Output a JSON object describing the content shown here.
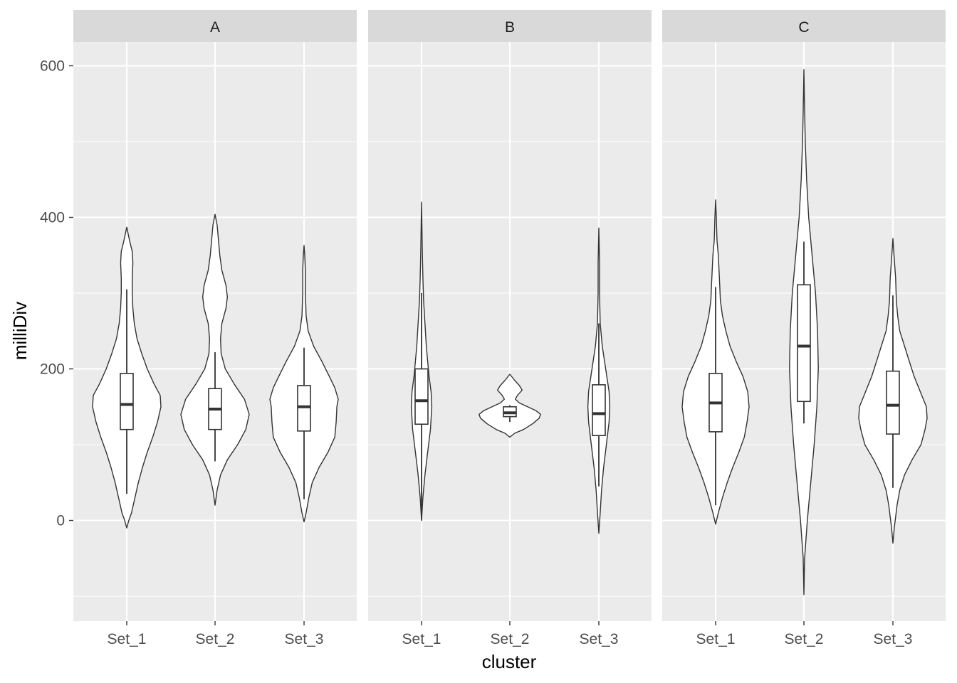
{
  "chart_data": {
    "type": "violin",
    "xlabel": "cluster",
    "ylabel": "milliDiv",
    "ylim": [
      -130,
      670
    ],
    "y_ticks": [
      0,
      200,
      400,
      600
    ],
    "y_tick_labels": [
      "0",
      "200",
      "400",
      "600"
    ],
    "x_tick_labels": [
      "Set_1",
      "Set_2",
      "Set_3"
    ],
    "grid": true,
    "overlay": "boxplot",
    "panels": [
      {
        "facet": "A",
        "groups": [
          {
            "category": "Set_1",
            "box": {
              "whisker_low": 35,
              "q1": 120,
              "median": 153,
              "q3": 194,
              "whisker_high": 305
            },
            "violin": {
              "ymin": -10,
              "ymax": 387,
              "density": [
                [
                  -10,
                  0.0
                ],
                [
                  0,
                  0.03
                ],
                [
                  10,
                  0.07
                ],
                [
                  30,
                  0.12
                ],
                [
                  50,
                  0.17
                ],
                [
                  70,
                  0.23
                ],
                [
                  90,
                  0.3
                ],
                [
                  110,
                  0.38
                ],
                [
                  130,
                  0.45
                ],
                [
                  150,
                  0.5
                ],
                [
                  165,
                  0.49
                ],
                [
                  180,
                  0.4
                ],
                [
                  200,
                  0.3
                ],
                [
                  220,
                  0.22
                ],
                [
                  240,
                  0.15
                ],
                [
                  260,
                  0.11
                ],
                [
                  280,
                  0.09
                ],
                [
                  300,
                  0.08
                ],
                [
                  320,
                  0.08
                ],
                [
                  340,
                  0.09
                ],
                [
                  355,
                  0.08
                ],
                [
                  370,
                  0.04
                ],
                [
                  387,
                  0.0
                ]
              ]
            }
          },
          {
            "category": "Set_2",
            "box": {
              "whisker_low": 78,
              "q1": 120,
              "median": 147,
              "q3": 174,
              "whisker_high": 222
            },
            "violin": {
              "ymin": 20,
              "ymax": 404,
              "density": [
                [
                  20,
                  0.0
                ],
                [
                  40,
                  0.03
                ],
                [
                  60,
                  0.08
                ],
                [
                  80,
                  0.18
                ],
                [
                  100,
                  0.33
                ],
                [
                  120,
                  0.45
                ],
                [
                  140,
                  0.5
                ],
                [
                  160,
                  0.43
                ],
                [
                  180,
                  0.28
                ],
                [
                  200,
                  0.15
                ],
                [
                  220,
                  0.09
                ],
                [
                  240,
                  0.08
                ],
                [
                  260,
                  0.1
                ],
                [
                  280,
                  0.16
                ],
                [
                  295,
                  0.18
                ],
                [
                  310,
                  0.16
                ],
                [
                  330,
                  0.1
                ],
                [
                  350,
                  0.07
                ],
                [
                  370,
                  0.05
                ],
                [
                  390,
                  0.03
                ],
                [
                  404,
                  0.0
                ]
              ]
            }
          },
          {
            "category": "Set_3",
            "box": {
              "whisker_low": 28,
              "q1": 118,
              "median": 150,
              "q3": 178,
              "whisker_high": 228
            },
            "violin": {
              "ymin": -2,
              "ymax": 363,
              "density": [
                [
                  -2,
                  0.0
                ],
                [
                  10,
                  0.03
                ],
                [
                  30,
                  0.07
                ],
                [
                  50,
                  0.12
                ],
                [
                  70,
                  0.22
                ],
                [
                  90,
                  0.35
                ],
                [
                  110,
                  0.45
                ],
                [
                  130,
                  0.47
                ],
                [
                  150,
                  0.48
                ],
                [
                  160,
                  0.5
                ],
                [
                  175,
                  0.45
                ],
                [
                  190,
                  0.37
                ],
                [
                  210,
                  0.26
                ],
                [
                  230,
                  0.14
                ],
                [
                  250,
                  0.06
                ],
                [
                  270,
                  0.03
                ],
                [
                  300,
                  0.02
                ],
                [
                  330,
                  0.02
                ],
                [
                  350,
                  0.01
                ],
                [
                  363,
                  0.0
                ]
              ]
            }
          }
        ]
      },
      {
        "facet": "B",
        "groups": [
          {
            "category": "Set_1",
            "box": {
              "whisker_low": 1,
              "q1": 127,
              "median": 158,
              "q3": 200,
              "whisker_high": 300
            },
            "violin": {
              "ymin": 0,
              "ymax": 420,
              "density": [
                [
                  0,
                  0.0
                ],
                [
                  30,
                  0.02
                ],
                [
                  60,
                  0.05
                ],
                [
                  90,
                  0.09
                ],
                [
                  120,
                  0.13
                ],
                [
                  150,
                  0.15
                ],
                [
                  170,
                  0.14
                ],
                [
                  190,
                  0.11
                ],
                [
                  210,
                  0.09
                ],
                [
                  230,
                  0.07
                ],
                [
                  260,
                  0.05
                ],
                [
                  290,
                  0.03
                ],
                [
                  320,
                  0.02
                ],
                [
                  360,
                  0.01
                ],
                [
                  420,
                  0.0
                ]
              ]
            }
          },
          {
            "category": "Set_2",
            "box": {
              "whisker_low": 130,
              "q1": 137,
              "median": 142,
              "q3": 150,
              "whisker_high": 152
            },
            "violin": {
              "ymin": 110,
              "ymax": 193,
              "density": [
                [
                  110,
                  0.0
                ],
                [
                  115,
                  0.07
                ],
                [
                  120,
                  0.2
                ],
                [
                  128,
                  0.34
                ],
                [
                  135,
                  0.43
                ],
                [
                  140,
                  0.45
                ],
                [
                  145,
                  0.38
                ],
                [
                  150,
                  0.26
                ],
                [
                  155,
                  0.14
                ],
                [
                  160,
                  0.08
                ],
                [
                  165,
                  0.11
                ],
                [
                  172,
                  0.18
                ],
                [
                  178,
                  0.14
                ],
                [
                  185,
                  0.07
                ],
                [
                  193,
                  0.0
                ]
              ]
            }
          },
          {
            "category": "Set_3",
            "box": {
              "whisker_low": 45,
              "q1": 112,
              "median": 141,
              "q3": 179,
              "whisker_high": 260
            },
            "violin": {
              "ymin": -17,
              "ymax": 386,
              "density": [
                [
                  -17,
                  0.0
                ],
                [
                  10,
                  0.02
                ],
                [
                  40,
                  0.04
                ],
                [
                  70,
                  0.07
                ],
                [
                  100,
                  0.11
                ],
                [
                  130,
                  0.15
                ],
                [
                  150,
                  0.16
                ],
                [
                  170,
                  0.15
                ],
                [
                  200,
                  0.1
                ],
                [
                  230,
                  0.05
                ],
                [
                  260,
                  0.02
                ],
                [
                  300,
                  0.01
                ],
                [
                  340,
                  0.01
                ],
                [
                  386,
                  0.0
                ]
              ]
            }
          }
        ]
      },
      {
        "facet": "C",
        "groups": [
          {
            "category": "Set_1",
            "box": {
              "whisker_low": 20,
              "q1": 117,
              "median": 155,
              "q3": 194,
              "whisker_high": 308
            },
            "violin": {
              "ymin": -5,
              "ymax": 423,
              "density": [
                [
                  -5,
                  0.0
                ],
                [
                  10,
                  0.04
                ],
                [
                  30,
                  0.1
                ],
                [
                  50,
                  0.17
                ],
                [
                  70,
                  0.25
                ],
                [
                  90,
                  0.34
                ],
                [
                  110,
                  0.42
                ],
                [
                  130,
                  0.46
                ],
                [
                  150,
                  0.49
                ],
                [
                  170,
                  0.47
                ],
                [
                  190,
                  0.4
                ],
                [
                  210,
                  0.3
                ],
                [
                  230,
                  0.21
                ],
                [
                  250,
                  0.15
                ],
                [
                  270,
                  0.1
                ],
                [
                  290,
                  0.07
                ],
                [
                  310,
                  0.06
                ],
                [
                  330,
                  0.05
                ],
                [
                  350,
                  0.04
                ],
                [
                  370,
                  0.02
                ],
                [
                  400,
                  0.01
                ],
                [
                  423,
                  0.0
                ]
              ]
            }
          },
          {
            "category": "Set_2",
            "box": {
              "whisker_low": 128,
              "q1": 157,
              "median": 230,
              "q3": 311,
              "whisker_high": 368
            },
            "violin": {
              "ymin": -98,
              "ymax": 595,
              "density": [
                [
                  -98,
                  0.0
                ],
                [
                  -50,
                  0.01
                ],
                [
                  0,
                  0.05
                ],
                [
                  50,
                  0.1
                ],
                [
                  100,
                  0.15
                ],
                [
                  150,
                  0.19
                ],
                [
                  200,
                  0.21
                ],
                [
                  250,
                  0.2
                ],
                [
                  300,
                  0.17
                ],
                [
                  350,
                  0.12
                ],
                [
                  400,
                  0.07
                ],
                [
                  450,
                  0.04
                ],
                [
                  500,
                  0.02
                ],
                [
                  540,
                  0.01
                ],
                [
                  595,
                  0.0
                ]
              ]
            }
          },
          {
            "category": "Set_3",
            "box": {
              "whisker_low": 43,
              "q1": 114,
              "median": 152,
              "q3": 197,
              "whisker_high": 297
            },
            "violin": {
              "ymin": -30,
              "ymax": 372,
              "density": [
                [
                  -30,
                  0.0
                ],
                [
                  -10,
                  0.02
                ],
                [
                  20,
                  0.06
                ],
                [
                  40,
                  0.1
                ],
                [
                  60,
                  0.17
                ],
                [
                  80,
                  0.28
                ],
                [
                  100,
                  0.41
                ],
                [
                  120,
                  0.47
                ],
                [
                  135,
                  0.5
                ],
                [
                  150,
                  0.49
                ],
                [
                  170,
                  0.4
                ],
                [
                  190,
                  0.31
                ],
                [
                  210,
                  0.24
                ],
                [
                  230,
                  0.17
                ],
                [
                  250,
                  0.1
                ],
                [
                  270,
                  0.07
                ],
                [
                  290,
                  0.05
                ],
                [
                  320,
                  0.04
                ],
                [
                  345,
                  0.02
                ],
                [
                  372,
                  0.0
                ]
              ]
            }
          }
        ]
      }
    ]
  }
}
